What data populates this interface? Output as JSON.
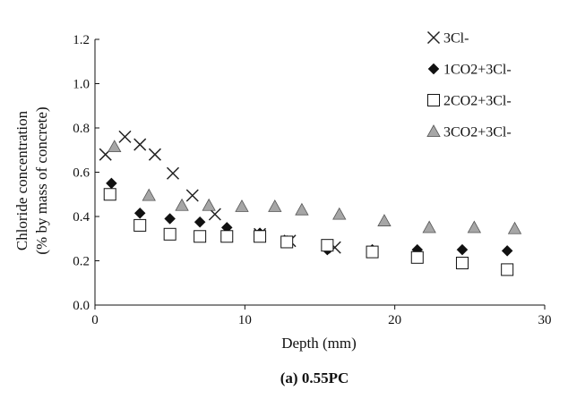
{
  "chart_data": {
    "type": "scatter",
    "caption": "(a) 0.55PC",
    "xlabel": "Depth (mm)",
    "ylabel_line1": "Chloride concentration",
    "ylabel_line2": "(% by mass of concrete)",
    "xlim": [
      0,
      30
    ],
    "ylim": [
      0,
      1.2
    ],
    "xticks": [
      "0",
      "10",
      "20",
      "30"
    ],
    "yticks": [
      "0.0",
      "0.2",
      "0.4",
      "0.6",
      "0.8",
      "1.0",
      "1.2"
    ],
    "grid": false,
    "legend_position": "top-right",
    "series": [
      {
        "name": "3Cl-",
        "marker": "x",
        "color": "#222222",
        "x": [
          0.7,
          2.0,
          3.0,
          4.0,
          5.2,
          6.5,
          8.0,
          11.0,
          13.0,
          16.0
        ],
        "y": [
          0.68,
          0.76,
          0.725,
          0.68,
          0.595,
          0.495,
          0.41,
          0.32,
          0.29,
          0.26
        ]
      },
      {
        "name": "1CO2+3Cl-",
        "marker": "diamond",
        "color": "#111111",
        "x": [
          1.1,
          3.0,
          5.0,
          7.0,
          8.8,
          11.0,
          12.8,
          15.5,
          18.5,
          21.5,
          24.5,
          27.5
        ],
        "y": [
          0.55,
          0.415,
          0.39,
          0.375,
          0.35,
          0.325,
          0.29,
          0.25,
          0.25,
          0.25,
          0.25,
          0.245
        ]
      },
      {
        "name": "2CO2+3Cl-",
        "marker": "square",
        "color": "#111111",
        "x": [
          1.0,
          3.0,
          5.0,
          7.0,
          8.8,
          11.0,
          12.8,
          15.5,
          18.5,
          21.5,
          24.5,
          27.5
        ],
        "y": [
          0.5,
          0.36,
          0.32,
          0.31,
          0.31,
          0.31,
          0.285,
          0.27,
          0.24,
          0.215,
          0.19,
          0.16
        ]
      },
      {
        "name": "3CO2+3Cl-",
        "marker": "triangle",
        "color": "#a6a6a6",
        "x": [
          1.3,
          3.6,
          5.8,
          7.6,
          9.8,
          12.0,
          13.8,
          16.3,
          19.3,
          22.3,
          25.3,
          28.0
        ],
        "y": [
          0.715,
          0.495,
          0.45,
          0.45,
          0.445,
          0.445,
          0.43,
          0.41,
          0.38,
          0.35,
          0.35,
          0.345
        ]
      }
    ]
  }
}
